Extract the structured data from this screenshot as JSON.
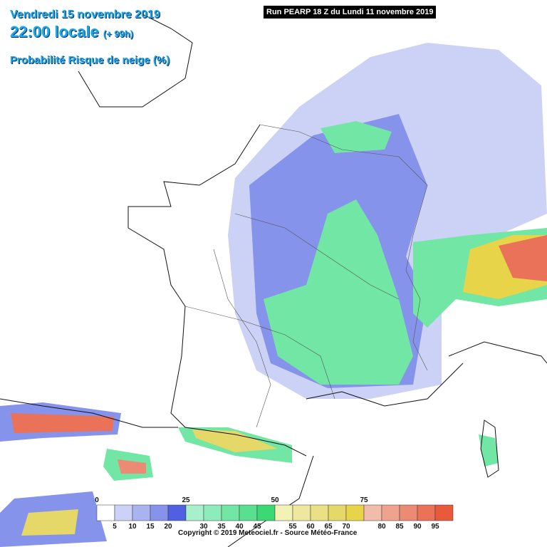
{
  "header": {
    "date": "Vendredi 15 novembre 2019",
    "time": "22:00 locale",
    "lead": "(+ 99h)",
    "product": "Probabilité Risque de neige (%)"
  },
  "run": "Run PEARP 18 Z du Lundi 11 novembre 2019",
  "legend": {
    "colors": [
      "#ffffff",
      "#ccd2f6",
      "#a9b3f0",
      "#8593eb",
      "#5060e2",
      "#a8f0cc",
      "#8eecba",
      "#72e6a4",
      "#58e090",
      "#3cd874",
      "#f2f2b4",
      "#eee89e",
      "#eae084",
      "#e6d868",
      "#e8d448",
      "#f2bcaa",
      "#efa28e",
      "#ec8a74",
      "#ea7258",
      "#e85a3a"
    ],
    "top_labels": [
      0,
      25,
      50,
      75
    ],
    "bottom_labels": [
      5,
      10,
      15,
      20,
      30,
      35,
      40,
      45,
      55,
      60,
      65,
      70,
      80,
      85,
      90,
      95
    ]
  },
  "copyright": "Copyright © 2019 Meteociel.fr - Source Météo-France"
}
